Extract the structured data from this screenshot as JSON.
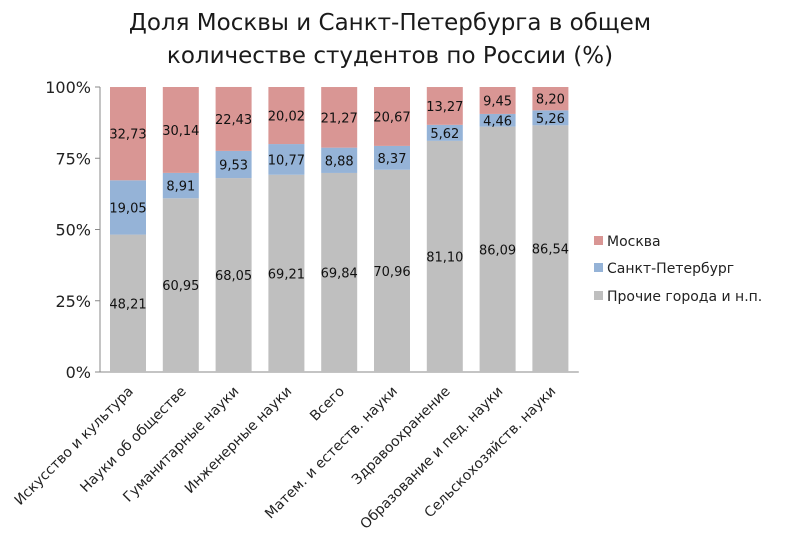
{
  "chart_data": {
    "type": "bar",
    "stacked": true,
    "title_lines": [
      "Доля Москвы и Санкт-Петербурга в общем",
      "количестве студентов по России (%)"
    ],
    "categories": [
      "Искусство и культура",
      "Науки об обществе",
      "Гуманитарные науки",
      "Инженерные науки",
      "Всего",
      "Матем. и естеств. науки",
      "Здравоохранение",
      "Образование и пед. науки",
      "Сельскохозяйств. науки"
    ],
    "series": [
      {
        "name": "Прочие города и н.п.",
        "color": "#bfbfbf",
        "values": [
          48.21,
          60.95,
          68.05,
          69.21,
          69.84,
          70.96,
          81.1,
          86.09,
          86.54
        ],
        "labels": [
          "48,21",
          "60,95",
          "68,05",
          "69,21",
          "69,84",
          "70,96",
          "81,10",
          "86,09",
          "86,54"
        ]
      },
      {
        "name": "Санкт-Петербург",
        "color": "#95b3d7",
        "values": [
          19.05,
          8.91,
          9.53,
          10.77,
          8.88,
          8.37,
          5.62,
          4.46,
          5.26
        ],
        "labels": [
          "19,05",
          "8,91",
          "9,53",
          "10,77",
          "8,88",
          "8,37",
          "5,62",
          "4,46",
          "5,26"
        ]
      },
      {
        "name": "Москва",
        "color": "#d99694",
        "values": [
          32.73,
          30.14,
          22.43,
          20.02,
          21.27,
          20.67,
          13.27,
          9.45,
          8.2
        ],
        "labels": [
          "32,73",
          "30,14",
          "22,43",
          "20,02",
          "21,27",
          "20,67",
          "13,27",
          "9,45",
          "8,20"
        ]
      }
    ],
    "legend_order": [
      "Москва",
      "Санкт-Петербург",
      "Прочие города и н.п."
    ],
    "y_ticks": [
      0,
      25,
      50,
      75,
      100
    ],
    "y_tick_labels": [
      "0%",
      "25%",
      "50%",
      "75%",
      "100%"
    ],
    "ylim": [
      0,
      100
    ],
    "legend_position": "right"
  }
}
